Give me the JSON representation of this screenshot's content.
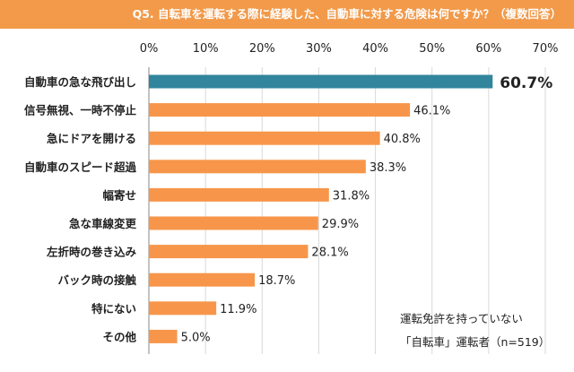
{
  "header": {
    "question": "Q5. 自転車を運転する際に経験した、自動車に対する危険は何ですか？（複数回答）"
  },
  "annotation": {
    "line1": "運転免許を持っていない",
    "line2": "「自転車」運転者（n=519）"
  },
  "colors": {
    "banner": "#f29a4a",
    "bar": "#f7964a",
    "highlight": "#31859c",
    "grid": "#d9d9d9"
  },
  "chart_data": {
    "type": "bar",
    "orientation": "horizontal",
    "title": "",
    "xlim": [
      0,
      70
    ],
    "x_ticks": [
      "0%",
      "10%",
      "20%",
      "30%",
      "40%",
      "50%",
      "60%",
      "70%"
    ],
    "grid": true,
    "categories": [
      "自動車の急な飛び出し",
      "信号無視、一時不停止",
      "急にドアを開ける",
      "自動車のスピード超過",
      "幅寄せ",
      "急な車線変更",
      "左折時の巻き込み",
      "バック時の接触",
      "特にない",
      "その他"
    ],
    "values": [
      60.7,
      46.1,
      40.8,
      38.3,
      31.8,
      29.9,
      28.1,
      18.7,
      11.9,
      5.0
    ],
    "value_labels": [
      "60.7%",
      "46.1%",
      "40.8%",
      "38.3%",
      "31.8%",
      "29.9%",
      "28.1%",
      "18.7%",
      "11.9%",
      "5.0%"
    ],
    "highlight_index": 0
  }
}
